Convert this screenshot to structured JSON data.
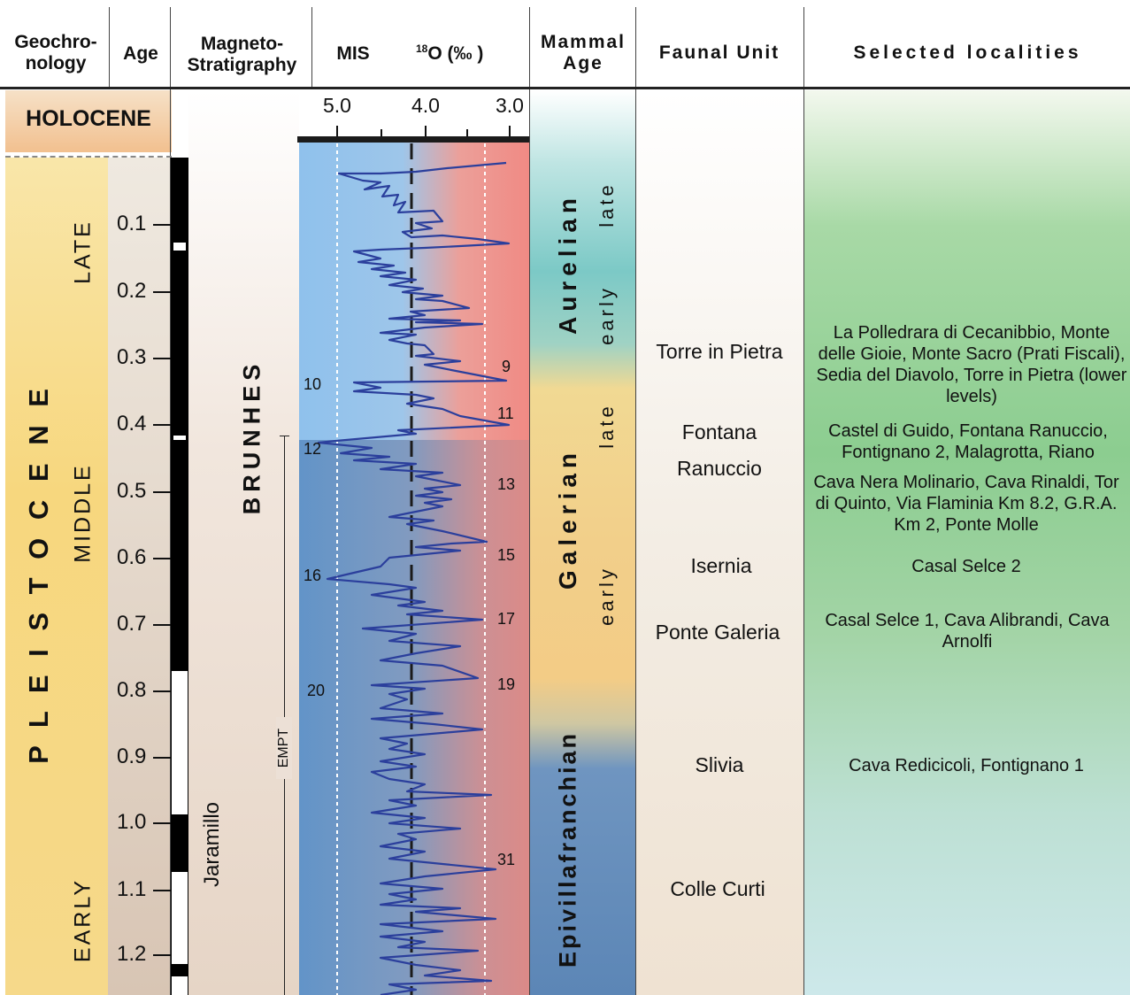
{
  "headers": {
    "geochronology": "Geochro-\nnology",
    "age": "Age",
    "magnetostratigraphy": "Magneto-\nStratigraphy",
    "mis": "MIS",
    "o18_sup": "18",
    "o18_rest": "O (‰ )",
    "mammal_age": "Mammal\nAge",
    "faunal_unit": "Faunal Unit",
    "selected_localities": "Selected localities"
  },
  "epochs": {
    "holocene": "HOLOCENE",
    "pleistocene": "P L E I S T O C E N E",
    "late": "LATE",
    "middle": "MIDDLE",
    "early": "EARLY"
  },
  "age_ticks": [
    "0.1",
    "0.2",
    "0.3",
    "0.4",
    "0.5",
    "0.6",
    "0.7",
    "0.8",
    "0.9",
    "1.0",
    "1.1",
    "1.2"
  ],
  "magneto": {
    "brunhes": "BRUNHES",
    "jaramillo": "Jaramillo",
    "empt": "EMPT"
  },
  "o18_axis": [
    "5.0",
    "4.0",
    "3.0"
  ],
  "mis_labels": [
    "9",
    "10",
    "11",
    "12",
    "13",
    "15",
    "16",
    "17",
    "19",
    "20",
    "31"
  ],
  "mammal_ages": {
    "aurelian": "Aurelian",
    "aurelian_late": "late",
    "aurelian_early": "early",
    "galerian": "Galerian",
    "galerian_late": "late",
    "galerian_early": "early",
    "epivillafranchian": "Epivillafranchian"
  },
  "faunal_units": [
    "Torre in Pietra",
    "Fontana\nRanuccio",
    "Isernia",
    "Ponte Galeria",
    "Slivia",
    "Colle Curti"
  ],
  "localities": [
    "La Polledrara di Cecanibbio, Monte delle Gioie, Monte Sacro (Prati Fiscali), Sedia del Diavolo, Torre in Pietra (lower levels)",
    "Castel di Guido, Fontana Ranuccio, Fontignano 2, Malagrotta, Riano",
    "Cava Nera Molinario, Cava Rinaldi, Tor di Quinto, Via Flaminia Km 8.2, G.R.A. Km 2, Ponte Molle",
    "Casal Selce 2",
    "Casal Selce 1, Cava Alibrandi, Cava Arnolfi",
    "Cava Redicicoli, Fontignano 1"
  ],
  "colors": {
    "pleistocene_band": "#f6d98a",
    "holocene_band": "#f3c89c",
    "o18_cold": "#8fbde6",
    "o18_warm": "#ef8f86",
    "curve": "#2b3f9c",
    "aurelian": "#7cc7c4",
    "galerian": "#f2cf8a",
    "epivillafranchian": "#5f89b7",
    "localities_top": "#7ec98a",
    "localities_bottom": "#bfe0e6"
  }
}
